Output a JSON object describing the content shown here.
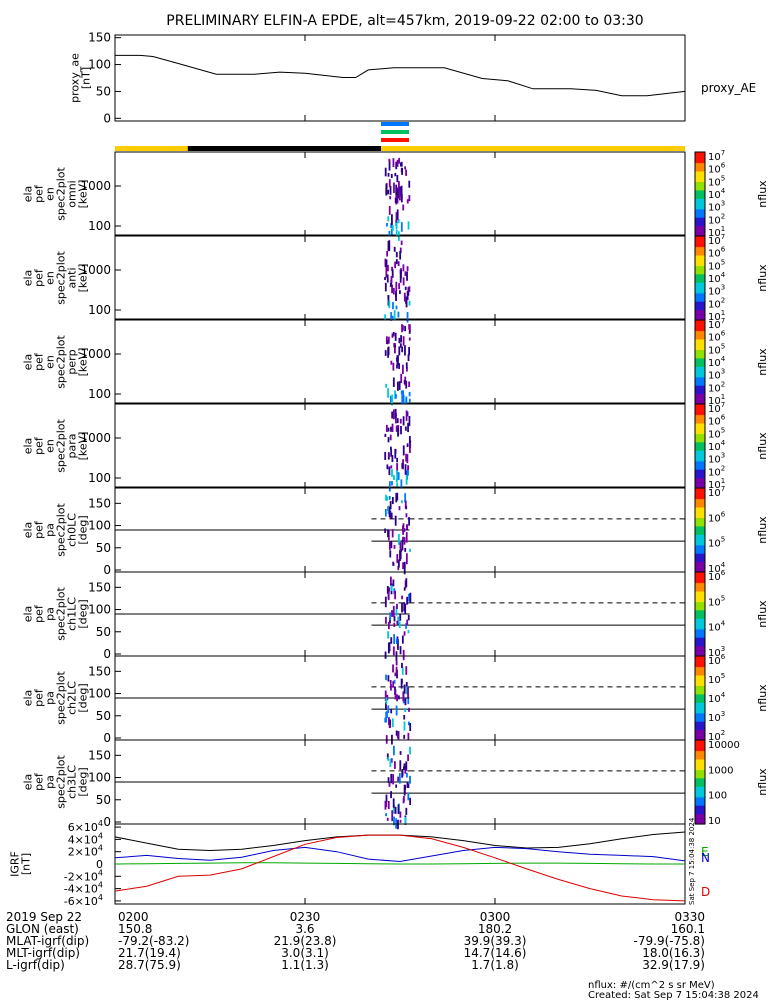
{
  "title": "PRELIMINARY ELFIN-A EPDE, alt=457km, 2019-09-22 02:00 to 03:30",
  "chart_data": [
    {
      "type": "line",
      "panel": "proxy_ae",
      "ylabel": [
        "proxy_ae",
        "[nT]"
      ],
      "right_label": "proxy_AE",
      "ylim": [
        -5,
        155
      ],
      "yticks": [
        0,
        50,
        100,
        150
      ],
      "x_minutes": [
        0,
        4,
        6,
        10,
        16,
        22,
        26,
        30,
        36,
        38,
        40,
        44,
        48,
        52,
        58,
        62,
        66,
        72,
        76,
        80,
        84,
        90
      ],
      "values": [
        117,
        117,
        115,
        102,
        82,
        82,
        86,
        84,
        76,
        76,
        90,
        94,
        94,
        94,
        74,
        70,
        55,
        55,
        52,
        42,
        42,
        50
      ]
    },
    {
      "type": "heatmap",
      "panel": "omni",
      "ylabel": [
        "ela",
        "pef",
        "en",
        "spec2plot",
        "omni",
        "[keV]"
      ],
      "log_y": true,
      "ytick_labels": [
        "100",
        "1000"
      ],
      "colorbar_ticks": [
        "10",
        "10",
        "10",
        "10",
        "10",
        "10",
        "10"
      ],
      "colorbar_exps": [
        "1",
        "2",
        "3",
        "4",
        "5",
        "6",
        "7"
      ],
      "colorbar_label": "nflux"
    },
    {
      "type": "heatmap",
      "panel": "anti",
      "ylabel": [
        "ela",
        "pef",
        "en",
        "spec2plot",
        "anti",
        "[keV]"
      ],
      "log_y": true,
      "ytick_labels": [
        "100",
        "1000"
      ],
      "colorbar_ticks": [
        "10",
        "10",
        "10",
        "10",
        "10",
        "10",
        "10"
      ],
      "colorbar_exps": [
        "1",
        "2",
        "3",
        "4",
        "5",
        "6",
        "7"
      ],
      "colorbar_label": "nflux"
    },
    {
      "type": "heatmap",
      "panel": "perp",
      "ylabel": [
        "ela",
        "pef",
        "en",
        "spec2plot",
        "perp",
        "[keV]"
      ],
      "log_y": true,
      "ytick_labels": [
        "100",
        "1000"
      ],
      "colorbar_ticks": [
        "10",
        "10",
        "10",
        "10",
        "10",
        "10",
        "10"
      ],
      "colorbar_exps": [
        "1",
        "2",
        "3",
        "4",
        "5",
        "6",
        "7"
      ],
      "colorbar_label": "nflux"
    },
    {
      "type": "heatmap",
      "panel": "para",
      "ylabel": [
        "ela",
        "pef",
        "en",
        "spec2plot",
        "para",
        "[keV]"
      ],
      "log_y": true,
      "ytick_labels": [
        "100",
        "1000"
      ],
      "colorbar_ticks": [
        "10",
        "10",
        "10",
        "10",
        "10",
        "10",
        "10"
      ],
      "colorbar_exps": [
        "1",
        "2",
        "3",
        "4",
        "5",
        "6",
        "7"
      ],
      "colorbar_label": "nflux"
    },
    {
      "type": "heatmap",
      "panel": "ch0LC",
      "ylabel": [
        "ela",
        "pef",
        "pa",
        "spec2plot",
        "ch0LC",
        "[deg]"
      ],
      "ylim": [
        0,
        180
      ],
      "ytick_labels": [
        "0",
        "50",
        "100",
        "150"
      ],
      "colorbar_ticks": [
        "10",
        "10",
        "10",
        "10"
      ],
      "colorbar_exps": [
        "4",
        "5",
        "6",
        "7"
      ],
      "colorbar_label": "nflux"
    },
    {
      "type": "heatmap",
      "panel": "ch1LC",
      "ylabel": [
        "ela",
        "pef",
        "pa",
        "spec2plot",
        "ch1LC",
        "[deg]"
      ],
      "ylim": [
        0,
        180
      ],
      "ytick_labels": [
        "0",
        "50",
        "100",
        "150"
      ],
      "colorbar_ticks": [
        "10",
        "10",
        "10",
        "10"
      ],
      "colorbar_exps": [
        "3",
        "4",
        "5",
        "6"
      ],
      "colorbar_label": "nflux"
    },
    {
      "type": "heatmap",
      "panel": "ch2LC",
      "ylabel": [
        "ela",
        "pef",
        "pa",
        "spec2plot",
        "ch2LC",
        "[deg]"
      ],
      "ylim": [
        0,
        180
      ],
      "ytick_labels": [
        "0",
        "50",
        "100",
        "150"
      ],
      "colorbar_ticks": [
        "10",
        "10",
        "10",
        "10",
        "10"
      ],
      "colorbar_exps": [
        "2",
        "3",
        "4",
        "5",
        "6"
      ],
      "colorbar_label": "nflux"
    },
    {
      "type": "heatmap",
      "panel": "ch3LC",
      "ylabel": [
        "ela",
        "pef",
        "pa",
        "spec2plot",
        "ch3LC",
        "[deg]"
      ],
      "ylim": [
        0,
        180
      ],
      "ytick_labels": [
        "0",
        "50",
        "100",
        "150"
      ],
      "colorbar_ticks": [
        "10",
        "100",
        "1000",
        "10000"
      ],
      "colorbar_exps": [
        "",
        "",
        "",
        ""
      ],
      "colorbar_label": "nflux"
    },
    {
      "type": "line",
      "panel": "IGRF",
      "ylabel": [
        "IGRF",
        "[nT]"
      ],
      "ylim": [
        -65000,
        65000
      ],
      "ytick_labels": [
        "-6×10",
        "-4×10",
        "-2×10",
        "0",
        "2×10",
        "4×10",
        "6×10"
      ],
      "ytick_values": [
        -60000,
        -40000,
        -20000,
        0,
        20000,
        40000,
        60000
      ],
      "ytick_exp": "4",
      "x_minutes": [
        0,
        5,
        10,
        15,
        20,
        25,
        30,
        35,
        40,
        45,
        50,
        55,
        60,
        65,
        70,
        75,
        80,
        85,
        90
      ],
      "series": [
        {
          "name": "",
          "color": "#000000",
          "values": [
            44000,
            34000,
            24000,
            22000,
            24000,
            30000,
            38000,
            44000,
            47000,
            47000,
            44000,
            38000,
            30000,
            26000,
            27000,
            33000,
            41000,
            48000,
            52000
          ]
        },
        {
          "name": "E",
          "color": "#00aa00",
          "values": [
            0,
            500,
            1000,
            1500,
            2000,
            2000,
            1500,
            1000,
            500,
            0,
            0,
            500,
            1000,
            1500,
            1500,
            1000,
            500,
            0,
            0
          ]
        },
        {
          "name": "N",
          "color": "#0000cc",
          "values": [
            10000,
            14000,
            9000,
            6000,
            11000,
            22000,
            27000,
            20000,
            8000,
            4000,
            13000,
            22000,
            27000,
            25000,
            20000,
            16000,
            14000,
            12000,
            5000
          ]
        },
        {
          "name": "D",
          "color": "#dd0000",
          "values": [
            -44000,
            -36000,
            -20000,
            -18000,
            -8000,
            12000,
            32000,
            43000,
            47000,
            47000,
            41000,
            27000,
            10000,
            -8000,
            -25000,
            -40000,
            -52000,
            -58000,
            -60000
          ]
        }
      ]
    }
  ],
  "bar_legend": [
    "E",
    "N",
    "D"
  ],
  "x_axis": {
    "ticks": [
      "0200",
      "0230",
      "0300",
      "0330"
    ],
    "rows": [
      {
        "label": "2019 Sep 22",
        "values": [
          "0200",
          "0230",
          "0300",
          "0330"
        ]
      },
      {
        "label": "GLON (east)",
        "values": [
          "150.8",
          "3.6",
          "180.2",
          "160.1"
        ]
      },
      {
        "label": "MLAT-igrf(dip)",
        "values": [
          "-79.2(-83.2)",
          "21.9(23.8)",
          "39.9(39.3)",
          "-79.9(-75.8)"
        ]
      },
      {
        "label": "MLT-igrf(dip)",
        "values": [
          "21.7(19.4)",
          "3.0(3.1)",
          "14.7(14.6)",
          "18.0(16.3)"
        ]
      },
      {
        "label": "L-igrf(dip)",
        "values": [
          "28.7(75.9)",
          "1.1(1.3)",
          "1.7(1.8)",
          "32.9(17.9)"
        ]
      }
    ]
  },
  "footer": {
    "units": "nflux: #/(cm^2 s sr MeV)",
    "created": "Created: Sat Sep  7 15:04:38 2024",
    "side_stamp": "Sat Sep  7 15:04:38 2024"
  }
}
